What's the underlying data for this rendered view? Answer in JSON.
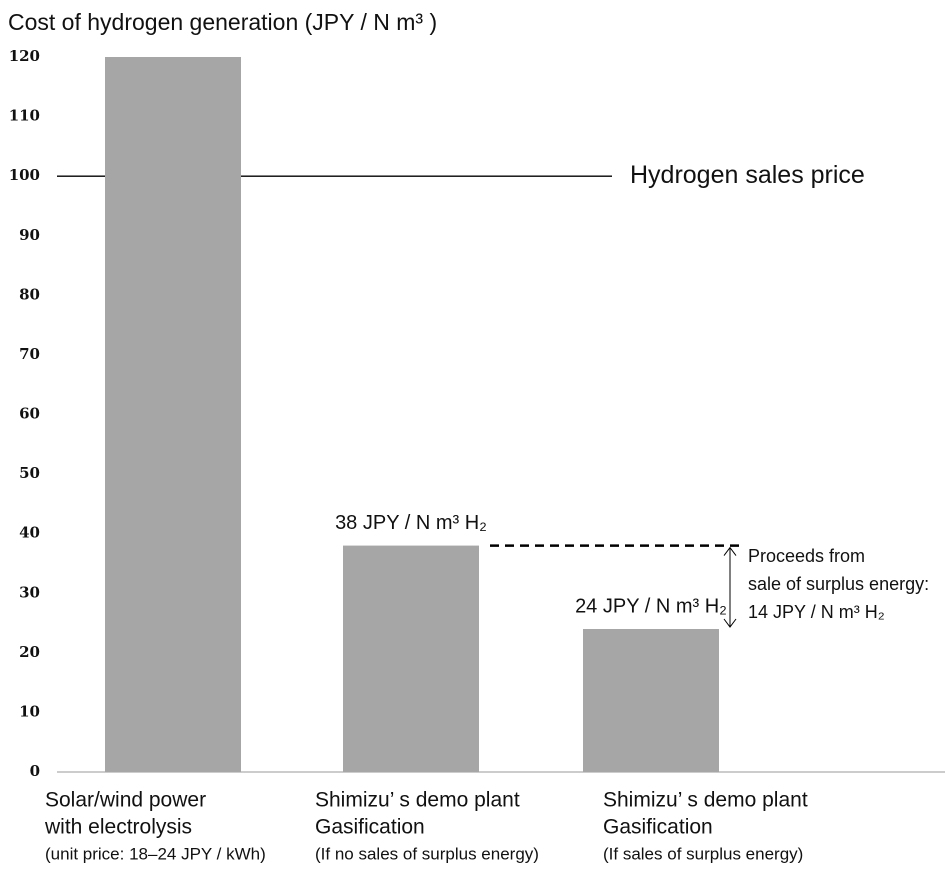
{
  "chart_data": {
    "type": "bar",
    "title": "Cost of hydrogen generation (JPY / N m³ )",
    "categories": [
      [
        "Solar/wind power",
        "with electrolysis",
        "(unit price: 18–24 JPY / kWh)"
      ],
      [
        "Shimizu’ s demo plant",
        "Gasification",
        "(If no sales of surplus energy)"
      ],
      [
        "Shimizu’ s demo plant",
        "Gasification",
        "(If sales of surplus energy)"
      ]
    ],
    "values": [
      120,
      38,
      24
    ],
    "value_labels": [
      null,
      "38 JPY / N m³ H₂",
      "24 JPY / N m³ H₂"
    ],
    "color": "#a6a6a6",
    "ylim": [
      0,
      120
    ],
    "yticks": [
      0,
      10,
      20,
      30,
      40,
      50,
      60,
      70,
      80,
      90,
      100,
      110,
      120
    ],
    "grid": false,
    "reference_line": {
      "value": 100,
      "label": "Hydrogen sales price"
    },
    "annotation": [
      "Proceeds from",
      "sale of surplus energy:",
      "14 JPY / N m³ H₂"
    ]
  }
}
